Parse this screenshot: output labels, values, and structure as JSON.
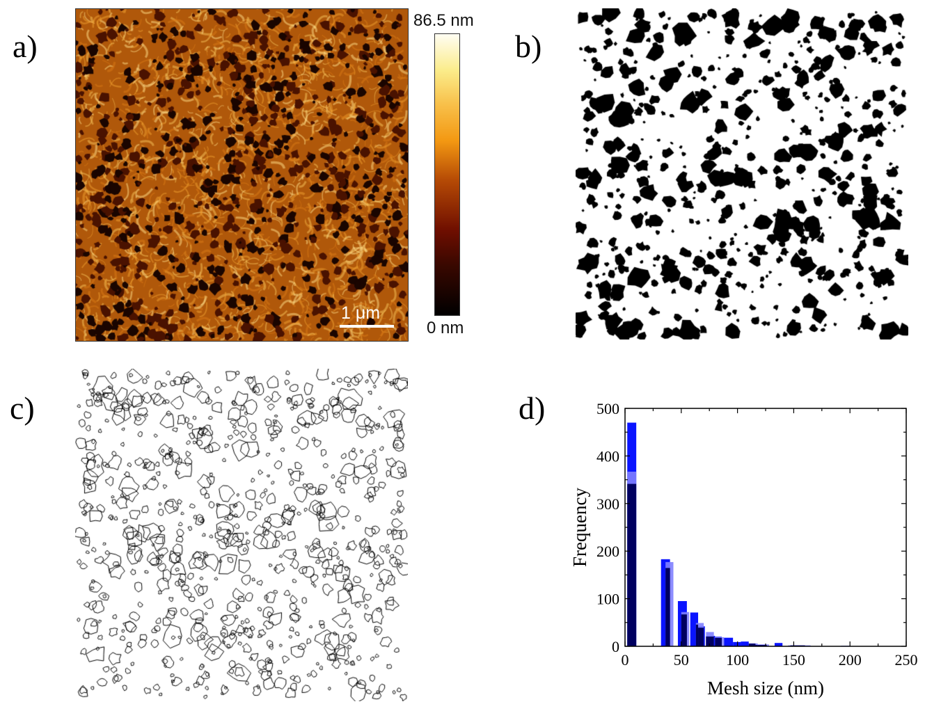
{
  "panels": {
    "a": "a)",
    "b": "b)",
    "c": "c)",
    "d": "d)"
  },
  "afm": {
    "colorbar_max": "86.5 nm",
    "colorbar_min": "0 nm",
    "scale_bar": "1 μm",
    "colormap": [
      "#000000",
      "#6e0e00",
      "#f39812",
      "#fffdf3"
    ]
  },
  "chart_data": {
    "type": "bar",
    "title": "",
    "xlabel": "Mesh size (nm)",
    "ylabel": "Frequency",
    "xlim": [
      0,
      250
    ],
    "ylim": [
      0,
      500
    ],
    "xticks": [
      "0",
      "50",
      "100",
      "150",
      "200",
      "250"
    ],
    "yticks": [
      "0",
      "100",
      "200",
      "300",
      "400",
      "500"
    ],
    "grid": false,
    "colors": {
      "series1": "#0a14ff",
      "series2": "#8080ff",
      "overlap": "#000060"
    },
    "series": [
      {
        "bins": [
          [
            2,
            10,
            470
          ],
          [
            32,
            40,
            183
          ],
          [
            47,
            55,
            95
          ],
          [
            58,
            65,
            71
          ],
          [
            65,
            71,
            42
          ],
          [
            72,
            80,
            22
          ],
          [
            80,
            86,
            20
          ],
          [
            88,
            96,
            18
          ],
          [
            96,
            103,
            9
          ],
          [
            103,
            110,
            10
          ],
          [
            110,
            116,
            6
          ],
          [
            116,
            126,
            3
          ],
          [
            133,
            140,
            7
          ],
          [
            147,
            160,
            2
          ],
          [
            192,
            200,
            1
          ]
        ]
      },
      {
        "bins": [
          [
            2,
            10,
            367
          ],
          [
            36,
            43,
            177
          ],
          [
            50,
            57,
            72
          ],
          [
            63,
            70,
            49
          ],
          [
            72,
            79,
            30
          ],
          [
            80,
            88,
            19
          ],
          [
            110,
            118,
            6
          ],
          [
            118,
            128,
            4
          ],
          [
            145,
            165,
            2
          ]
        ]
      }
    ]
  }
}
